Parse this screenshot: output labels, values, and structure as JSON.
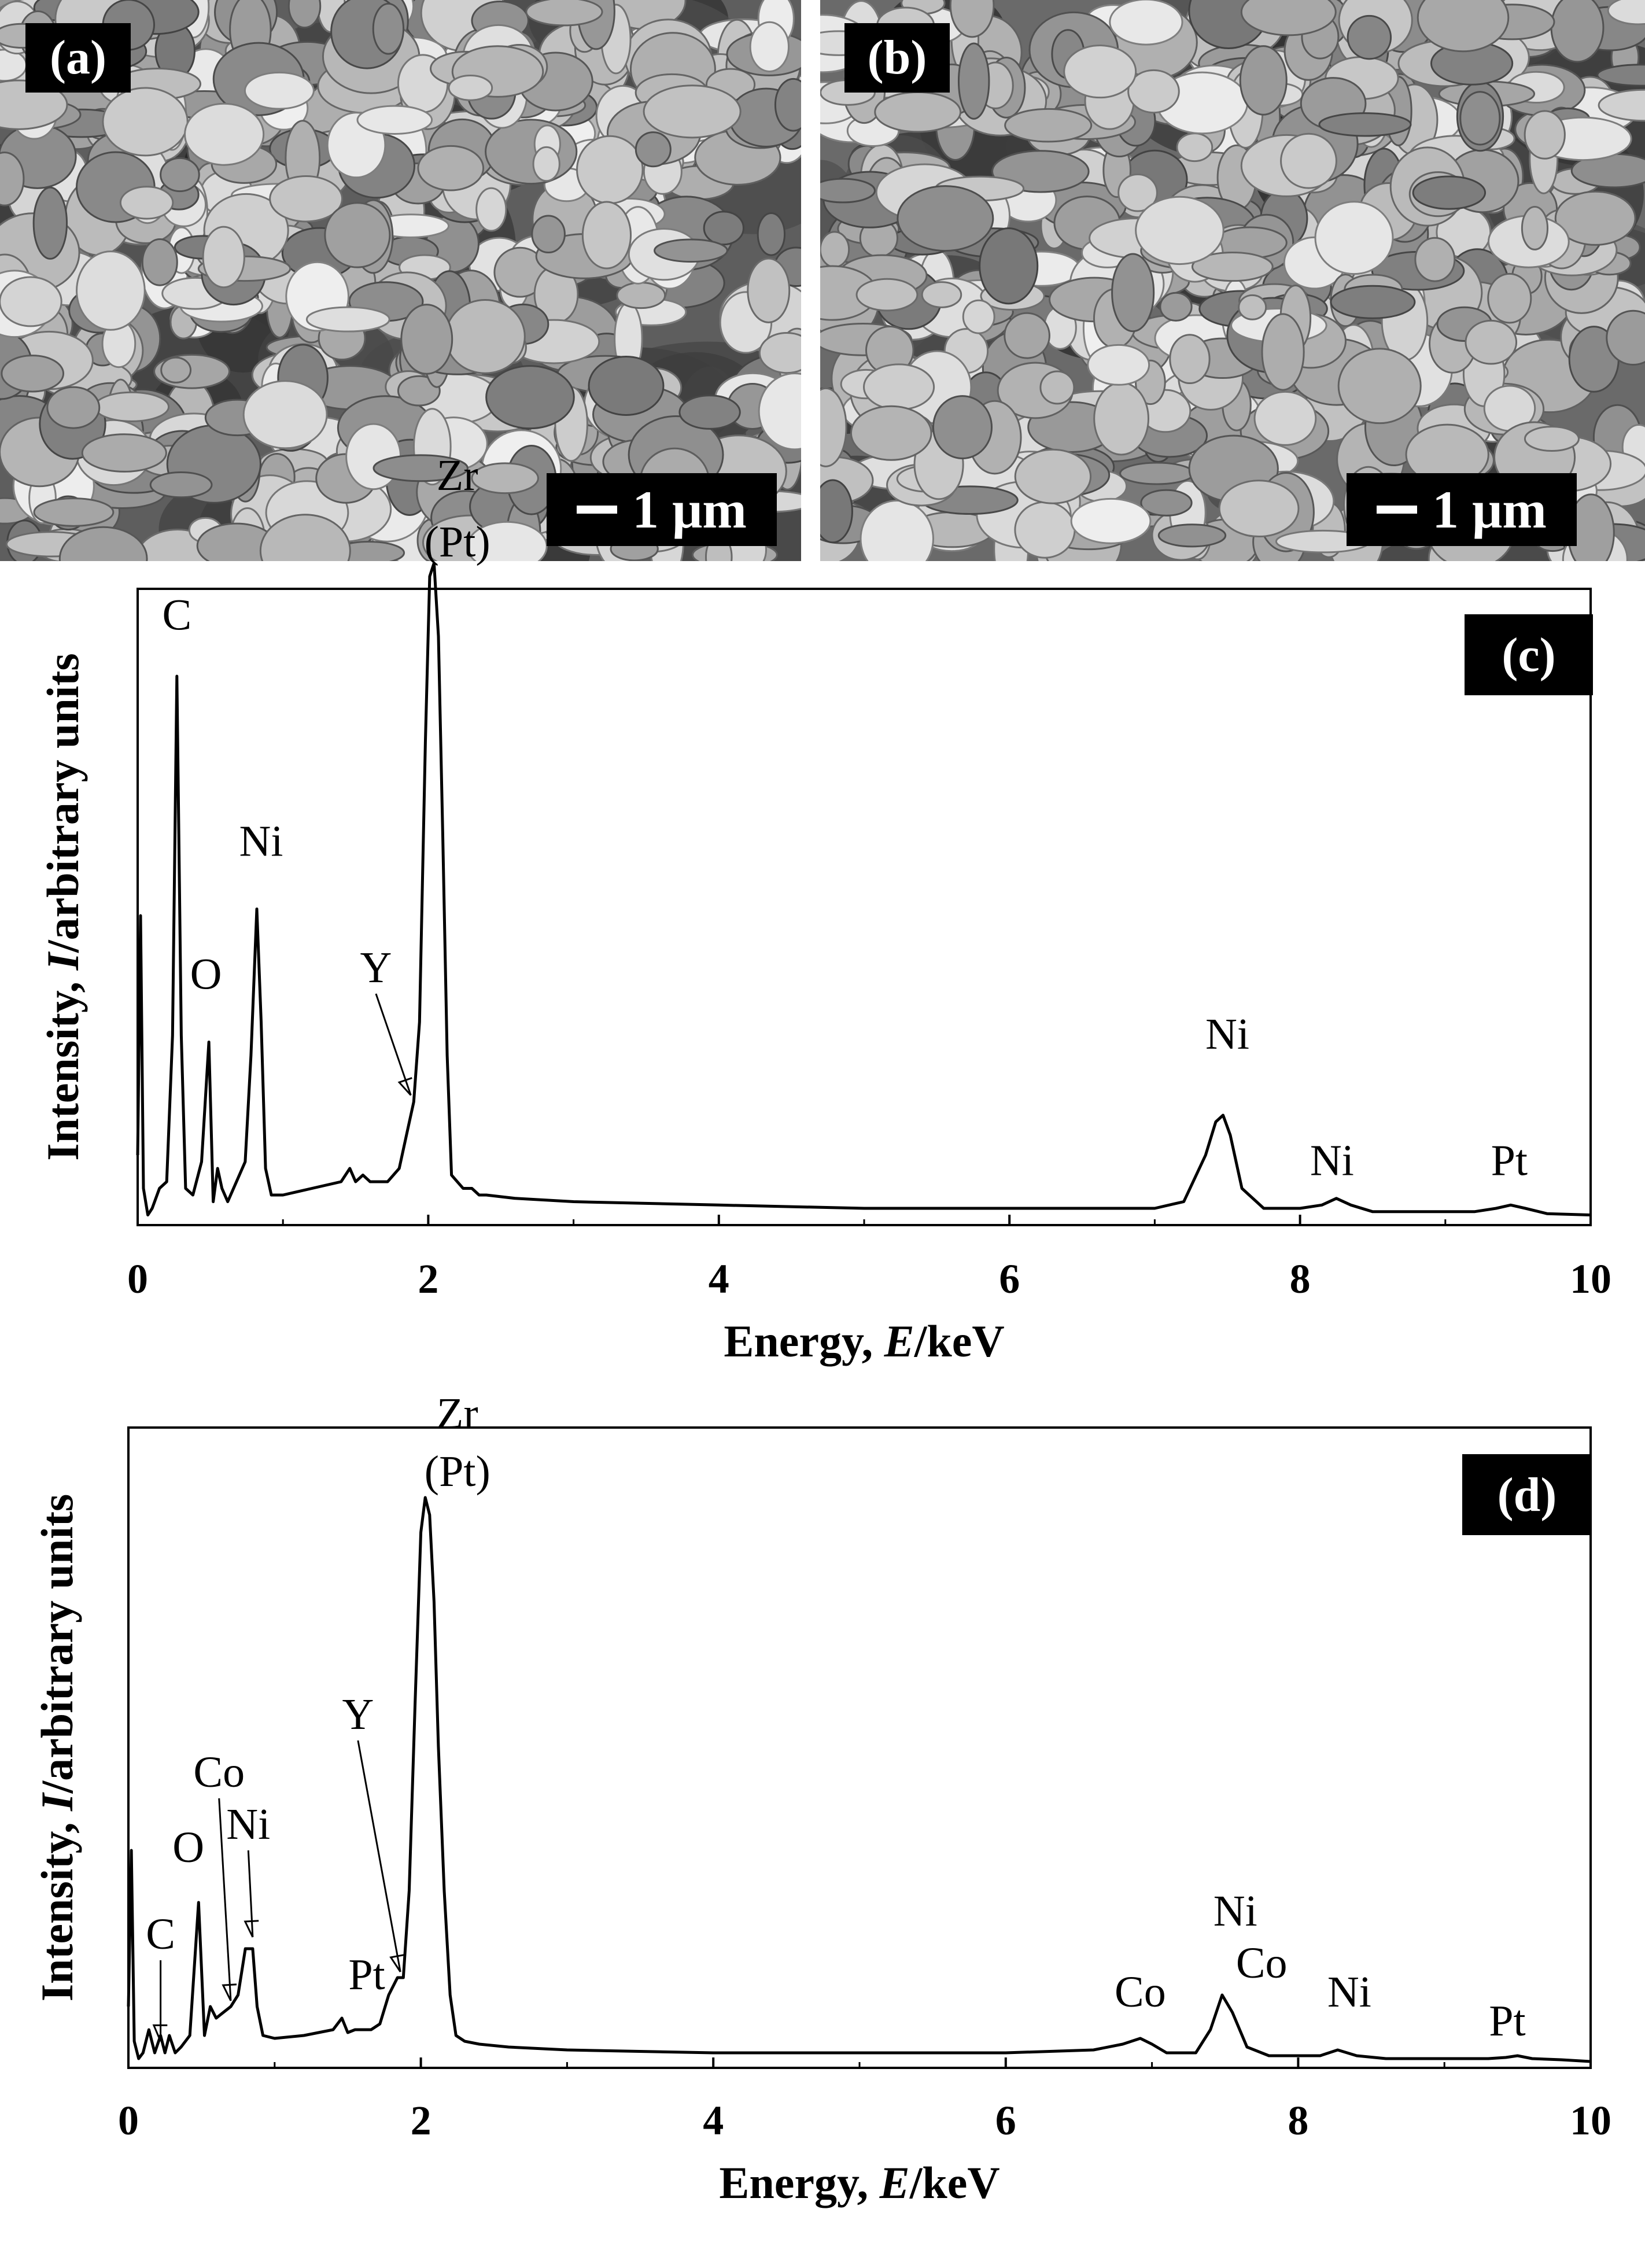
{
  "panels": {
    "a": {
      "label": "(a)",
      "scalebar": "1 μm"
    },
    "b": {
      "label": "(b)",
      "scalebar": "1 μm"
    }
  },
  "chart_data": [
    {
      "type": "line",
      "panel_label": "(c)",
      "xlabel": "Energy, E/keV",
      "ylabel": "Intensity, I/arbitrary units",
      "xlim": [
        0,
        10
      ],
      "x_ticks": [
        "0",
        "2",
        "4",
        "6",
        "8",
        "10"
      ],
      "y_ticks": [],
      "grid": false,
      "series": [
        {
          "x": [
            0.0,
            0.02,
            0.04,
            0.07,
            0.1,
            0.15,
            0.2,
            0.24,
            0.27,
            0.3,
            0.33,
            0.38,
            0.44,
            0.49,
            0.52,
            0.55,
            0.58,
            0.62,
            0.68,
            0.74,
            0.78,
            0.82,
            0.85,
            0.88,
            0.92,
            1.0,
            1.2,
            1.4,
            1.46,
            1.5,
            1.55,
            1.6,
            1.65,
            1.72,
            1.8,
            1.86,
            1.9,
            1.94,
            1.98,
            2.01,
            2.04,
            2.07,
            2.1,
            2.13,
            2.16,
            2.2,
            2.24,
            2.3,
            2.35,
            2.4,
            2.6,
            3.0,
            4.0,
            5.0,
            6.0,
            6.5,
            7.0,
            7.2,
            7.35,
            7.42,
            7.47,
            7.52,
            7.6,
            7.75,
            8.0,
            8.15,
            8.25,
            8.35,
            8.5,
            8.8,
            9.2,
            9.35,
            9.45,
            9.55,
            9.7,
            10.0
          ],
          "y": [
            0.1,
            0.46,
            0.05,
            0.01,
            0.02,
            0.05,
            0.06,
            0.28,
            0.82,
            0.28,
            0.05,
            0.04,
            0.09,
            0.27,
            0.03,
            0.08,
            0.05,
            0.03,
            0.06,
            0.09,
            0.25,
            0.47,
            0.3,
            0.08,
            0.04,
            0.04,
            0.05,
            0.06,
            0.08,
            0.06,
            0.07,
            0.06,
            0.06,
            0.06,
            0.08,
            0.14,
            0.18,
            0.3,
            0.72,
            0.97,
            0.99,
            0.88,
            0.58,
            0.25,
            0.07,
            0.06,
            0.05,
            0.05,
            0.04,
            0.04,
            0.035,
            0.03,
            0.025,
            0.02,
            0.02,
            0.02,
            0.02,
            0.03,
            0.1,
            0.15,
            0.16,
            0.13,
            0.05,
            0.02,
            0.02,
            0.025,
            0.035,
            0.025,
            0.015,
            0.015,
            0.015,
            0.02,
            0.025,
            0.02,
            0.012,
            0.01
          ]
        }
      ],
      "annotations": [
        {
          "text": "C",
          "x": 0.27,
          "y": 0.89
        },
        {
          "text": "O",
          "x": 0.47,
          "y": 0.35
        },
        {
          "text": "Ni",
          "x": 0.85,
          "y": 0.55
        },
        {
          "text": "Y",
          "x": 1.64,
          "y": 0.36,
          "arrow_to": [
            1.88,
            0.19
          ]
        },
        {
          "text": "Zr",
          "x": 2.2,
          "y": 1.1
        },
        {
          "text": "(Pt)",
          "x": 2.2,
          "y": 1.0
        },
        {
          "text": "Ni",
          "x": 7.5,
          "y": 0.26
        },
        {
          "text": "Ni",
          "x": 8.22,
          "y": 0.07
        },
        {
          "text": "Pt",
          "x": 9.44,
          "y": 0.07
        }
      ]
    },
    {
      "type": "line",
      "panel_label": "(d)",
      "xlabel": "Energy, E/keV",
      "ylabel": "Intensity, I/arbitrary units",
      "xlim": [
        0,
        10
      ],
      "x_ticks": [
        "0",
        "2",
        "4",
        "6",
        "8",
        "10"
      ],
      "y_ticks": [],
      "grid": false,
      "series": [
        {
          "x": [
            0.0,
            0.02,
            0.04,
            0.07,
            0.1,
            0.14,
            0.18,
            0.22,
            0.25,
            0.28,
            0.32,
            0.36,
            0.42,
            0.48,
            0.52,
            0.56,
            0.6,
            0.65,
            0.7,
            0.75,
            0.8,
            0.85,
            0.88,
            0.92,
            1.0,
            1.2,
            1.4,
            1.46,
            1.5,
            1.55,
            1.6,
            1.66,
            1.72,
            1.78,
            1.84,
            1.88,
            1.92,
            1.96,
            2.0,
            2.03,
            2.06,
            2.09,
            2.12,
            2.16,
            2.2,
            2.24,
            2.3,
            2.4,
            2.6,
            3.0,
            4.0,
            5.0,
            6.0,
            6.6,
            6.8,
            6.92,
            7.0,
            7.1,
            7.3,
            7.4,
            7.48,
            7.55,
            7.65,
            7.8,
            8.0,
            8.15,
            8.27,
            8.4,
            8.6,
            9.0,
            9.3,
            9.42,
            9.5,
            9.6,
            9.8,
            10.0
          ],
          "y": [
            0.1,
            0.37,
            0.04,
            0.01,
            0.02,
            0.06,
            0.02,
            0.05,
            0.02,
            0.05,
            0.02,
            0.03,
            0.05,
            0.28,
            0.05,
            0.1,
            0.08,
            0.09,
            0.1,
            0.12,
            0.2,
            0.2,
            0.1,
            0.05,
            0.045,
            0.05,
            0.06,
            0.08,
            0.055,
            0.06,
            0.06,
            0.06,
            0.07,
            0.12,
            0.15,
            0.15,
            0.3,
            0.62,
            0.92,
            0.98,
            0.95,
            0.8,
            0.55,
            0.3,
            0.12,
            0.05,
            0.04,
            0.035,
            0.03,
            0.025,
            0.02,
            0.02,
            0.02,
            0.025,
            0.035,
            0.045,
            0.035,
            0.02,
            0.02,
            0.06,
            0.12,
            0.09,
            0.03,
            0.015,
            0.015,
            0.015,
            0.025,
            0.015,
            0.01,
            0.01,
            0.01,
            0.012,
            0.015,
            0.01,
            0.008,
            0.005
          ]
        }
      ],
      "annotations": [
        {
          "text": "C",
          "x": 0.22,
          "y": 0.2,
          "arrow_to": [
            0.22,
            0.04
          ]
        },
        {
          "text": "O",
          "x": 0.41,
          "y": 0.35
        },
        {
          "text": "Co",
          "x": 0.62,
          "y": 0.48,
          "arrow_to": [
            0.7,
            0.11
          ]
        },
        {
          "text": "Ni",
          "x": 0.82,
          "y": 0.39,
          "arrow_to": [
            0.85,
            0.22
          ]
        },
        {
          "text": "Y",
          "x": 1.57,
          "y": 0.58,
          "arrow_to": [
            1.86,
            0.16
          ]
        },
        {
          "text": "Pt",
          "x": 1.63,
          "y": 0.13
        },
        {
          "text": "Zr",
          "x": 2.25,
          "y": 1.1
        },
        {
          "text": "(Pt)",
          "x": 2.25,
          "y": 1.0
        },
        {
          "text": "Co",
          "x": 6.92,
          "y": 0.1
        },
        {
          "text": "Ni",
          "x": 7.57,
          "y": 0.24
        },
        {
          "text": "Co",
          "x": 7.75,
          "y": 0.15
        },
        {
          "text": "Ni",
          "x": 8.35,
          "y": 0.1
        },
        {
          "text": "Pt",
          "x": 9.43,
          "y": 0.05
        }
      ]
    }
  ]
}
